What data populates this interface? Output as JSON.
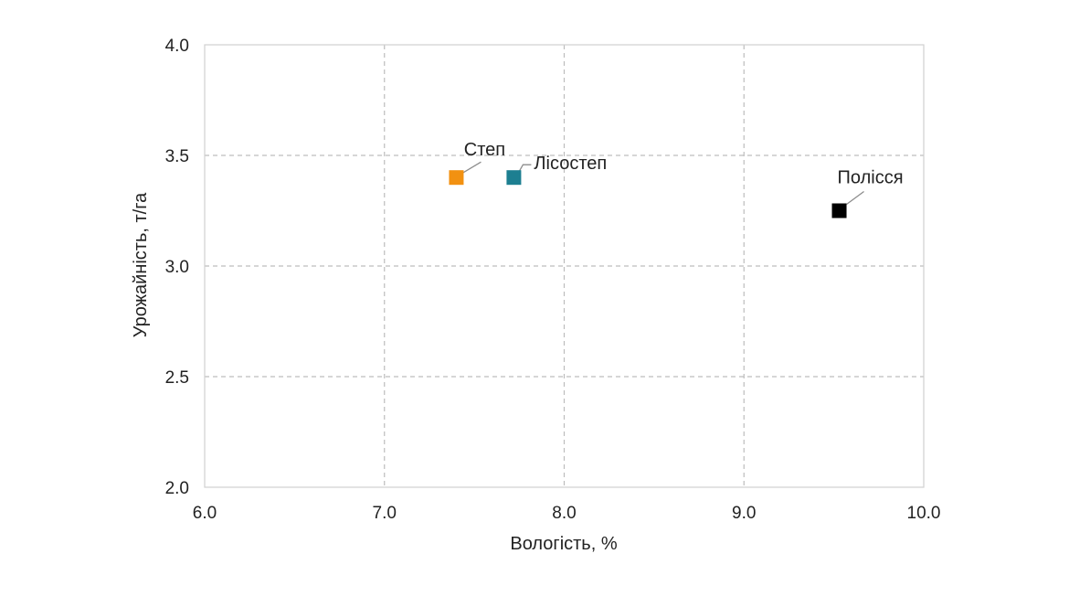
{
  "chart_data": {
    "type": "scatter",
    "xlabel": "Вологість, %",
    "ylabel": "Урожайність, т/га",
    "xlim": [
      6.0,
      10.0
    ],
    "ylim": [
      2.0,
      4.0
    ],
    "x_ticks": [
      "6.0",
      "7.0",
      "8.0",
      "9.0",
      "10.0"
    ],
    "y_ticks": [
      "2.0",
      "2.5",
      "3.0",
      "3.5",
      "4.0"
    ],
    "grid": true,
    "points": [
      {
        "label": "Степ",
        "x": 7.4,
        "y": 3.4,
        "color": "#f29111"
      },
      {
        "label": "Лісостеп",
        "x": 7.72,
        "y": 3.4,
        "color": "#1d7f91"
      },
      {
        "label": "Полісся",
        "x": 9.53,
        "y": 3.25,
        "color": "#000000"
      }
    ]
  }
}
